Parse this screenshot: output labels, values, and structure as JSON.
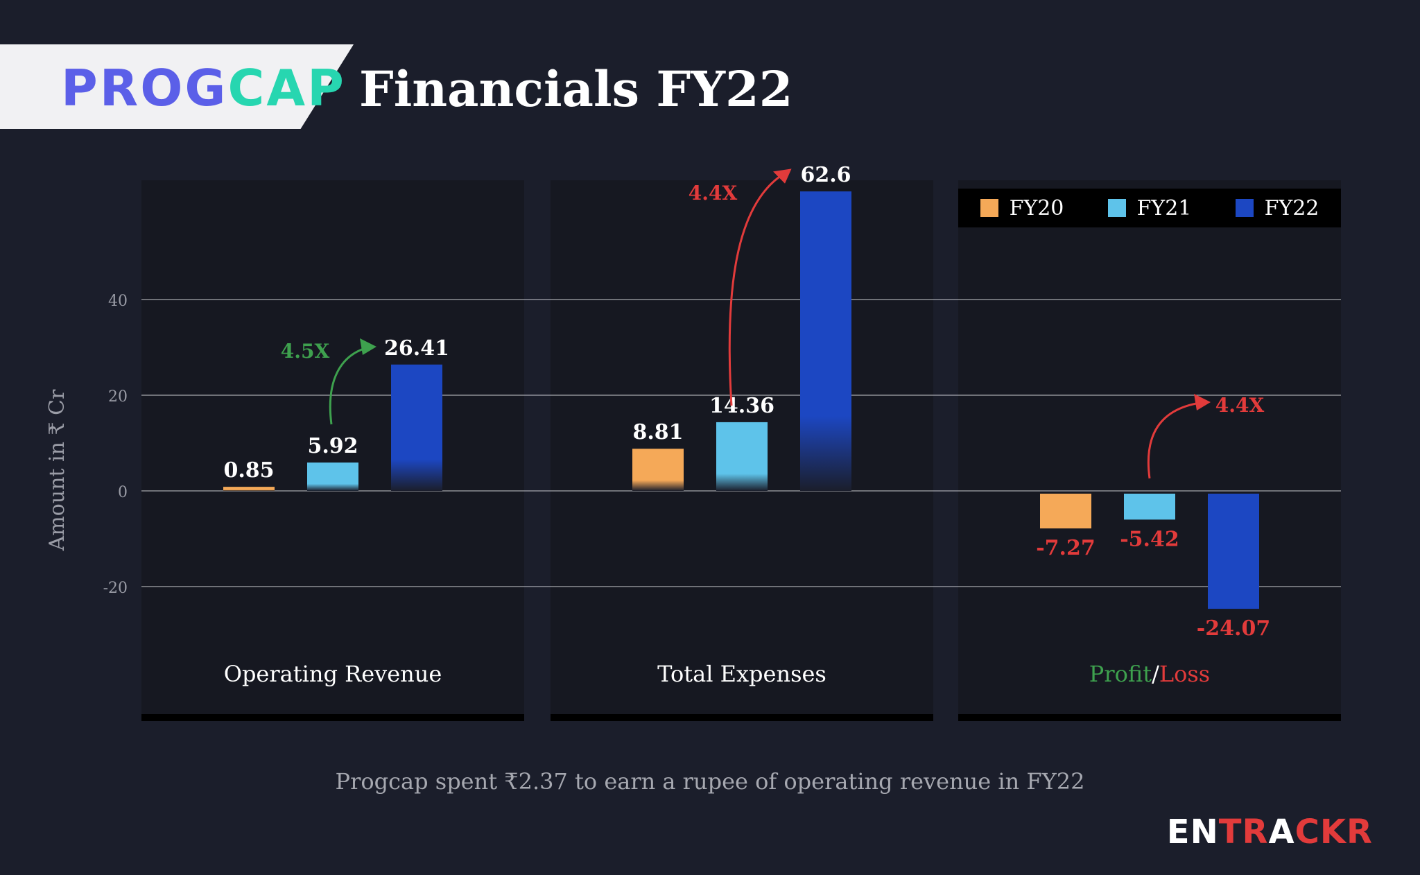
{
  "header": {
    "logo_part1": "PROG",
    "logo_part2": "CAP",
    "title": "Financials FY22"
  },
  "colors": {
    "FY20": "#f5a958",
    "FY21": "#5ec3ea",
    "FY22": "#1c47c2",
    "growth_green": "#3ea14e",
    "loss_red": "#e23b3b",
    "label_white": "#ffffff"
  },
  "chart_data": {
    "type": "bar",
    "title": "Financials FY22",
    "ylabel": "Amount in ₹ Cr",
    "xlabel": "",
    "ylim": [
      -40,
      80
    ],
    "yticks": [
      -20,
      0,
      20,
      40
    ],
    "grid": true,
    "legend_position": "top-right",
    "series": [
      {
        "name": "FY20",
        "values": [
          0.85,
          8.81,
          -7.27
        ]
      },
      {
        "name": "FY21",
        "values": [
          5.92,
          14.36,
          -5.42
        ]
      },
      {
        "name": "FY22",
        "values": [
          26.41,
          62.6,
          -24.07
        ]
      }
    ],
    "categories": [
      "Operating Revenue",
      "Total Expenses",
      "Profit/Loss"
    ],
    "category_label_parts": {
      "profit": "Profit",
      "sep": "/",
      "loss": "Loss"
    },
    "annotations": [
      {
        "text": "4.5X",
        "group": 0,
        "color": "#3ea14e"
      },
      {
        "text": "4.4X",
        "group": 1,
        "color": "#e23b3b"
      },
      {
        "text": "4.4X",
        "group": 2,
        "color": "#e23b3b"
      }
    ]
  },
  "footnote": "Progcap spent ₹2.37 to earn a rupee of operating revenue in FY22",
  "brand": {
    "part1": "EN",
    "part2": "TR",
    "part3": "A",
    "part4": "CKR"
  }
}
